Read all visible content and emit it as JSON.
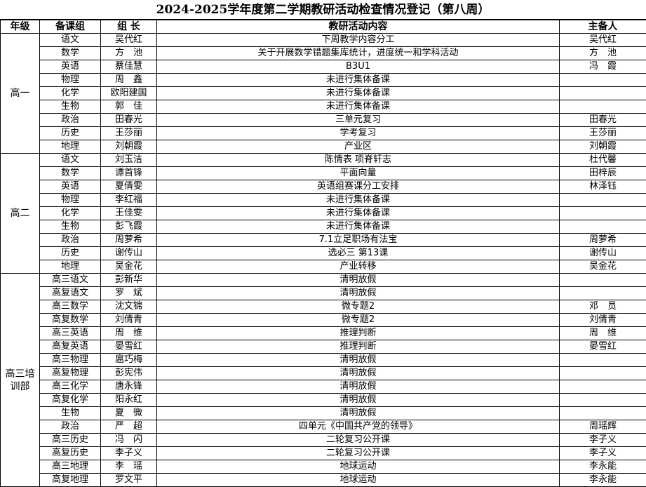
{
  "title": "2024-2025学年度第二学期教研活动检查情况登记（第八周）",
  "headers": [
    "年级",
    "备课组",
    "组 长",
    "教研活动内容",
    "主备人"
  ],
  "groups": [
    {
      "grade": "高一",
      "rows": [
        [
          "语文",
          "吴代红",
          "下周教学内容分工",
          "吴代红"
        ],
        [
          "数学",
          "方　池",
          "关于开展数学错题集库统计，进度统一和学科活动",
          "方　池"
        ],
        [
          "英语",
          "蔡佳慧",
          "B3U1",
          "冯　霞"
        ],
        [
          "物理",
          "周　鑫",
          "未进行集体备课",
          ""
        ],
        [
          "化学",
          "欧阳建国",
          "未进行集体备课",
          ""
        ],
        [
          "生物",
          "郭　佳",
          "未进行集体备课",
          ""
        ],
        [
          "政治",
          "田春光",
          "三单元复习",
          "田春光"
        ],
        [
          "历史",
          "王莎丽",
          "学考复习",
          "王莎丽"
        ],
        [
          "地理",
          "刘朝霞",
          "产业区",
          "刘朝霞"
        ]
      ]
    },
    {
      "grade": "高二",
      "rows": [
        [
          "语文",
          "刘玉洁",
          "陈情表 项脊轩志",
          "杜代馨"
        ],
        [
          "数学",
          "谭首锋",
          "平面向量",
          "田梓辰"
        ],
        [
          "英语",
          "夏倩雯",
          "英语组赛课分工安排",
          "林泽钰"
        ],
        [
          "物理",
          "李红福",
          "未进行集体备课",
          ""
        ],
        [
          "化学",
          "王佳雯",
          "未进行集体备课",
          ""
        ],
        [
          "生物",
          "彭飞霞",
          "未进行集体备课",
          ""
        ],
        [
          "政治",
          "周萝希",
          "7.1立足职场有法宝",
          "周萝希"
        ],
        [
          "历史",
          "谢传山",
          "选必三 第13课",
          "谢传山"
        ],
        [
          "地理",
          "吴金花",
          "产业转移",
          "吴金花"
        ]
      ]
    },
    {
      "grade": "高三培训部",
      "rows": [
        [
          "高三语文",
          "彭新华",
          "清明放假",
          ""
        ],
        [
          "高复语文",
          "罗　斌",
          "清明放假",
          ""
        ],
        [
          "高三数学",
          "沈文锦",
          "微专题2",
          "邓　员"
        ],
        [
          "高复数学",
          "刘倩青",
          "微专题2",
          "刘倩青"
        ],
        [
          "高三英语",
          "周　维",
          "推理判断",
          "周　维"
        ],
        [
          "高复英语",
          "晏雪红",
          "推理判断",
          "晏雪红"
        ],
        [
          "高三物理",
          "扈巧梅",
          "清明放假",
          ""
        ],
        [
          "高复物理",
          "彭宪伟",
          "清明放假",
          ""
        ],
        [
          "高三化学",
          "唐永锋",
          "清明放假",
          ""
        ],
        [
          "高复化学",
          "阳永红",
          "清明放假",
          ""
        ],
        [
          "生物",
          "夏　微",
          "清明放假",
          ""
        ],
        [
          "政治",
          "严　超",
          "四单元《中国共产党的领导》",
          "周瑶辉"
        ],
        [
          "高三历史",
          "冯　闪",
          "二轮复习公开课",
          "李子义"
        ],
        [
          "高复历史",
          "李子义",
          "二轮复习公开课",
          "李子义"
        ],
        [
          "高三地理",
          "李　瑶",
          "地球运动",
          "李永能"
        ],
        [
          "高复地理",
          "罗文平",
          "地球运动",
          "李永能"
        ]
      ]
    }
  ]
}
